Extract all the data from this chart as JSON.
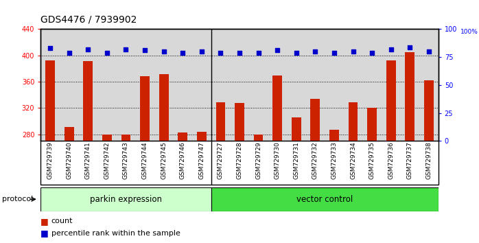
{
  "title": "GDS4476 / 7939902",
  "samples": [
    "GSM729739",
    "GSM729740",
    "GSM729741",
    "GSM729742",
    "GSM729743",
    "GSM729744",
    "GSM729745",
    "GSM729746",
    "GSM729747",
    "GSM729727",
    "GSM729728",
    "GSM729729",
    "GSM729730",
    "GSM729731",
    "GSM729732",
    "GSM729733",
    "GSM729734",
    "GSM729735",
    "GSM729736",
    "GSM729737",
    "GSM729738"
  ],
  "counts": [
    393,
    291,
    391,
    280,
    280,
    368,
    372,
    283,
    284,
    329,
    328,
    280,
    370,
    306,
    334,
    287,
    329,
    320,
    393,
    405,
    362
  ],
  "percentile_ranks": [
    83,
    79,
    82,
    79,
    82,
    81,
    80,
    79,
    80,
    79,
    79,
    79,
    81,
    79,
    80,
    79,
    80,
    79,
    82,
    84,
    80
  ],
  "parkin_count": 9,
  "vector_count": 12,
  "ylim_left": [
    270,
    440
  ],
  "ylim_right": [
    0,
    100
  ],
  "yticks_left": [
    280,
    320,
    360,
    400,
    440
  ],
  "yticks_right": [
    0,
    25,
    50,
    75,
    100
  ],
  "bar_color": "#cc2200",
  "dot_color": "#0000cc",
  "parkin_bg": "#ccffcc",
  "vector_bg": "#44dd44",
  "label_bar": "count",
  "label_dot": "percentile rank within the sample",
  "protocol_label": "protocol",
  "parkin_label": "parkin expression",
  "vector_label": "vector control",
  "title_fontsize": 10,
  "tick_fontsize": 7,
  "legend_fontsize": 8,
  "sample_label_fontsize": 6.5,
  "protocol_fontsize": 8
}
